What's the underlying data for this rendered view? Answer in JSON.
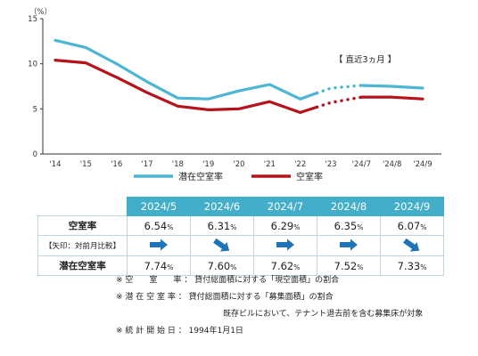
{
  "chart_data": {
    "type": "line",
    "unit_label": "（%）",
    "categories": [
      "'14",
      "'15",
      "'16",
      "'17",
      "'18",
      "'19",
      "'20",
      "'21",
      "'22",
      "'23",
      "'24/7",
      "'24/8",
      "'24/9"
    ],
    "ylim": [
      0,
      15
    ],
    "yticks": [
      0,
      5,
      10,
      15
    ],
    "grid": false,
    "series": [
      {
        "name": "潜在空室率",
        "color": "#4db6d3",
        "values": [
          12.6,
          11.8,
          10.0,
          8.0,
          6.2,
          6.1,
          7.0,
          7.7,
          6.1,
          7.3,
          7.6,
          7.5,
          7.3
        ]
      },
      {
        "name": "空室率",
        "color": "#b5121b",
        "values": [
          10.4,
          10.1,
          8.5,
          6.8,
          5.3,
          4.9,
          5.0,
          5.8,
          4.6,
          5.7,
          6.3,
          6.3,
          6.1
        ]
      }
    ],
    "annotations": [
      "【 直近3ヵ月 】"
    ],
    "legend_position": "bottom"
  },
  "table": {
    "headers": [
      "2024/5",
      "2024/6",
      "2024/7",
      "2024/8",
      "2024/9"
    ],
    "vacancy_label": "空室率",
    "arrow_label": "【矢印：対前月比較】",
    "latent_label": "潜在空室率",
    "vacancy": [
      "6.54",
      "6.31",
      "6.29",
      "6.35",
      "6.07"
    ],
    "latent": [
      "7.74",
      "7.60",
      "7.62",
      "7.52",
      "7.33"
    ],
    "percent": "%",
    "arrows": [
      "right",
      "down-right",
      "right",
      "right",
      "down-right"
    ],
    "arrow_color": "#1f74b8"
  },
  "notes": {
    "line1": "※ 空　　室　　率 ： 貸付総面積に対する「現空面積」の割合",
    "line2": "※ 潜 在 空 室 率 ： 貸付総面積に対する「募集面積」の割合",
    "line3": "既存ビルにおいて、テナント退去前を含む募集床が対象",
    "line4": "※ 統 計 開 始 日 ： 1994年1月1日"
  }
}
